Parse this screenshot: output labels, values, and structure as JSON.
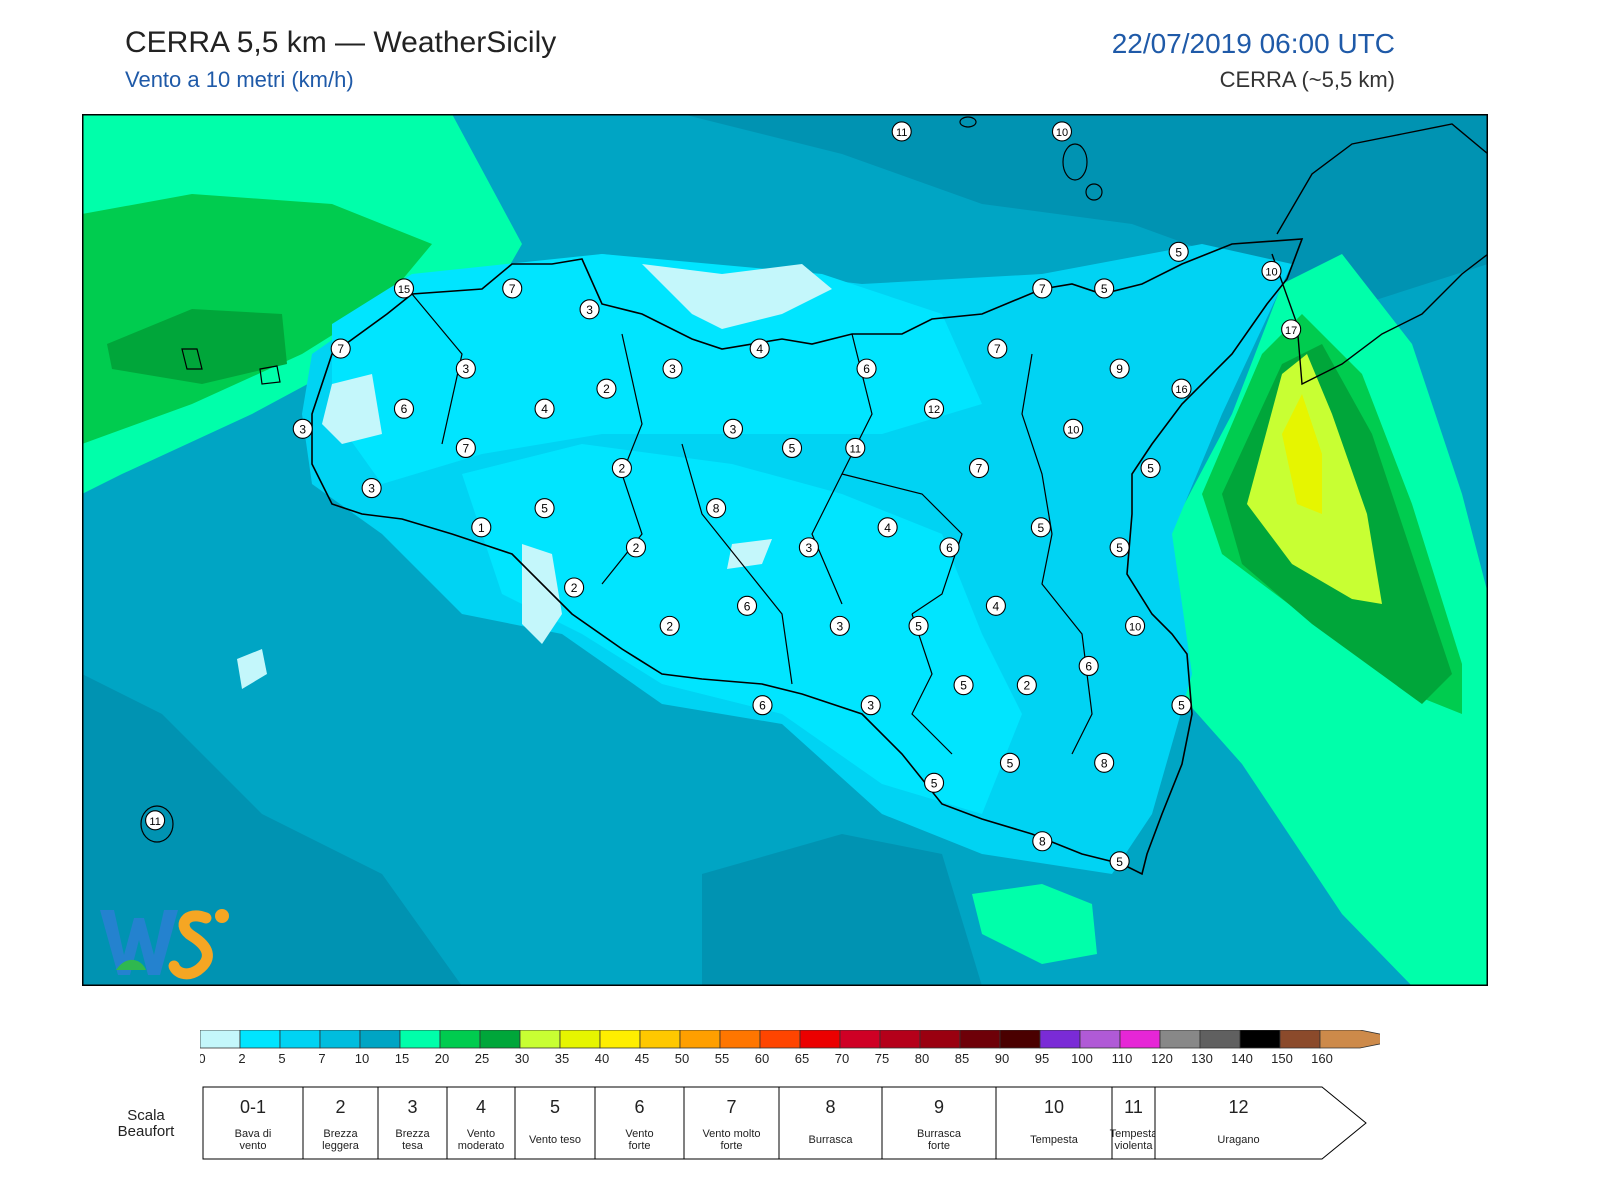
{
  "header": {
    "title": "CERRA 5,5 km — WeatherSicily",
    "subtitle": "Vento a 10 metri (km/h)",
    "date": "22/07/2019 06:00 UTC",
    "model": "CERRA (~5,5 km)"
  },
  "map": {
    "station_labels": [
      {
        "v": "11",
        "lon": 0.583,
        "lat": 0.02
      },
      {
        "v": "10",
        "lon": 0.697,
        "lat": 0.02
      },
      {
        "v": "5",
        "lon": 0.78,
        "lat": 0.158
      },
      {
        "v": "10",
        "lon": 0.846,
        "lat": 0.18
      },
      {
        "v": "15",
        "lon": 0.229,
        "lat": 0.2
      },
      {
        "v": "7",
        "lon": 0.306,
        "lat": 0.2
      },
      {
        "v": "7",
        "lon": 0.683,
        "lat": 0.2
      },
      {
        "v": "5",
        "lon": 0.727,
        "lat": 0.2
      },
      {
        "v": "17",
        "lon": 0.86,
        "lat": 0.247
      },
      {
        "v": "3",
        "lon": 0.361,
        "lat": 0.224
      },
      {
        "v": "4",
        "lon": 0.482,
        "lat": 0.269
      },
      {
        "v": "7",
        "lon": 0.651,
        "lat": 0.269
      },
      {
        "v": "7",
        "lon": 0.184,
        "lat": 0.269
      },
      {
        "v": "6",
        "lon": 0.558,
        "lat": 0.292
      },
      {
        "v": "9",
        "lon": 0.738,
        "lat": 0.292
      },
      {
        "v": "3",
        "lon": 0.273,
        "lat": 0.292
      },
      {
        "v": "3",
        "lon": 0.42,
        "lat": 0.292
      },
      {
        "v": "16",
        "lon": 0.782,
        "lat": 0.315
      },
      {
        "v": "2",
        "lon": 0.373,
        "lat": 0.315
      },
      {
        "v": "12",
        "lon": 0.606,
        "lat": 0.338
      },
      {
        "v": "6",
        "lon": 0.229,
        "lat": 0.338
      },
      {
        "v": "4",
        "lon": 0.329,
        "lat": 0.338
      },
      {
        "v": "3",
        "lon": 0.463,
        "lat": 0.361
      },
      {
        "v": "10",
        "lon": 0.705,
        "lat": 0.361
      },
      {
        "v": "3",
        "lon": 0.157,
        "lat": 0.361
      },
      {
        "v": "7",
        "lon": 0.273,
        "lat": 0.383
      },
      {
        "v": "5",
        "lon": 0.505,
        "lat": 0.383
      },
      {
        "v": "11",
        "lon": 0.55,
        "lat": 0.383
      },
      {
        "v": "2",
        "lon": 0.384,
        "lat": 0.406
      },
      {
        "v": "7",
        "lon": 0.638,
        "lat": 0.406
      },
      {
        "v": "5",
        "lon": 0.76,
        "lat": 0.406
      },
      {
        "v": "3",
        "lon": 0.206,
        "lat": 0.429
      },
      {
        "v": "8",
        "lon": 0.451,
        "lat": 0.452
      },
      {
        "v": "5",
        "lon": 0.329,
        "lat": 0.452
      },
      {
        "v": "1",
        "lon": 0.284,
        "lat": 0.474
      },
      {
        "v": "4",
        "lon": 0.573,
        "lat": 0.474
      },
      {
        "v": "5",
        "lon": 0.682,
        "lat": 0.474
      },
      {
        "v": "2",
        "lon": 0.394,
        "lat": 0.497
      },
      {
        "v": "3",
        "lon": 0.517,
        "lat": 0.497
      },
      {
        "v": "6",
        "lon": 0.617,
        "lat": 0.497
      },
      {
        "v": "5",
        "lon": 0.738,
        "lat": 0.497
      },
      {
        "v": "2",
        "lon": 0.35,
        "lat": 0.543
      },
      {
        "v": "6",
        "lon": 0.473,
        "lat": 0.564
      },
      {
        "v": "4",
        "lon": 0.65,
        "lat": 0.564
      },
      {
        "v": "3",
        "lon": 0.539,
        "lat": 0.587
      },
      {
        "v": "5",
        "lon": 0.595,
        "lat": 0.587
      },
      {
        "v": "10",
        "lon": 0.749,
        "lat": 0.587
      },
      {
        "v": "2",
        "lon": 0.418,
        "lat": 0.587
      },
      {
        "v": "6",
        "lon": 0.716,
        "lat": 0.633
      },
      {
        "v": "5",
        "lon": 0.627,
        "lat": 0.655
      },
      {
        "v": "2",
        "lon": 0.672,
        "lat": 0.655
      },
      {
        "v": "6",
        "lon": 0.484,
        "lat": 0.678
      },
      {
        "v": "3",
        "lon": 0.561,
        "lat": 0.678
      },
      {
        "v": "5",
        "lon": 0.782,
        "lat": 0.678
      },
      {
        "v": "5",
        "lon": 0.66,
        "lat": 0.744
      },
      {
        "v": "8",
        "lon": 0.727,
        "lat": 0.744
      },
      {
        "v": "5",
        "lon": 0.606,
        "lat": 0.767
      },
      {
        "v": "11",
        "lon": 0.052,
        "lat": 0.81
      },
      {
        "v": "8",
        "lon": 0.683,
        "lat": 0.834
      },
      {
        "v": "5",
        "lon": 0.738,
        "lat": 0.857
      }
    ]
  },
  "legend": {
    "colors": [
      "#c4f7fb",
      "#00e5ff",
      "#00d3f3",
      "#00bdde",
      "#00a5c4",
      "#00ffaa",
      "#00cc4f",
      "#00a63a",
      "#c8ff33",
      "#e6f500",
      "#ffee00",
      "#ffc800",
      "#ff9f00",
      "#ff7600",
      "#ff4500",
      "#eb0000",
      "#cf0025",
      "#b5001a",
      "#9a0010",
      "#6e0008",
      "#4a0000",
      "#7a2bd6",
      "#b05ad6",
      "#e626d6",
      "#888888",
      "#606060",
      "#000000",
      "#8b4a2b",
      "#cd8a4a"
    ],
    "ticks": [
      "0",
      "2",
      "5",
      "7",
      "10",
      "15",
      "20",
      "25",
      "30",
      "35",
      "40",
      "45",
      "50",
      "55",
      "60",
      "65",
      "70",
      "75",
      "80",
      "85",
      "90",
      "95",
      "100",
      "110",
      "120",
      "130",
      "140",
      "150",
      "160"
    ]
  },
  "beaufort": {
    "caption": "Scala Beaufort",
    "cells": [
      {
        "num": "0-1",
        "label": "Bava di vento"
      },
      {
        "num": "2",
        "label": "Brezza leggera"
      },
      {
        "num": "3",
        "label": "Brezza tesa"
      },
      {
        "num": "4",
        "label": "Vento moderato"
      },
      {
        "num": "5",
        "label": "Vento teso"
      },
      {
        "num": "6",
        "label": "Vento forte"
      },
      {
        "num": "7",
        "label": "Vento molto forte"
      },
      {
        "num": "8",
        "label": "Burrasca"
      },
      {
        "num": "9",
        "label": "Burrasca forte"
      },
      {
        "num": "10",
        "label": "Tempesta"
      },
      {
        "num": "11",
        "label": "Tempesta violenta"
      },
      {
        "num": "12",
        "label": "Uragano"
      }
    ]
  },
  "logo": {
    "text": "WEATHER SICILY"
  }
}
